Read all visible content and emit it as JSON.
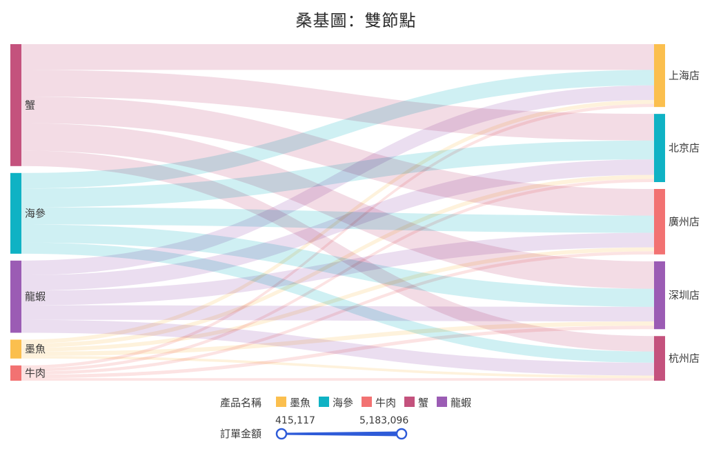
{
  "colors": {
    "墨魚": "#fbbf4e",
    "海參": "#0fb2c4",
    "牛肉": "#f27272",
    "蟹": "#c4527d",
    "龍蝦": "#9b5cb4",
    "slider": "#2e5bd8"
  },
  "chart_data": {
    "type": "sankey",
    "title": "桑基圖：雙節點",
    "sources": [
      "蟹",
      "海參",
      "龍蝦",
      "墨魚",
      "牛肉"
    ],
    "targets": [
      "上海店",
      "北京店",
      "廣州店",
      "深圳店",
      "杭州店"
    ],
    "links": [
      {
        "source": "蟹",
        "target": "上海店",
        "value": 1500000
      },
      {
        "source": "蟹",
        "target": "北京店",
        "value": 1550000
      },
      {
        "source": "蟹",
        "target": "廣州店",
        "value": 1550000
      },
      {
        "source": "蟹",
        "target": "深圳店",
        "value": 1600000
      },
      {
        "source": "蟹",
        "target": "杭州店",
        "value": 900000
      },
      {
        "source": "海參",
        "target": "上海店",
        "value": 900000
      },
      {
        "source": "海參",
        "target": "北京店",
        "value": 1100000
      },
      {
        "source": "海參",
        "target": "廣州店",
        "value": 1000000
      },
      {
        "source": "海參",
        "target": "深圳店",
        "value": 1050000
      },
      {
        "source": "海參",
        "target": "杭州店",
        "value": 650000
      },
      {
        "source": "龍蝦",
        "target": "上海店",
        "value": 850000
      },
      {
        "source": "龍蝦",
        "target": "北京店",
        "value": 900000
      },
      {
        "source": "龍蝦",
        "target": "廣州店",
        "value": 850000
      },
      {
        "source": "龍蝦",
        "target": "深圳店",
        "value": 850000
      },
      {
        "source": "龍蝦",
        "target": "杭州店",
        "value": 750000
      },
      {
        "source": "墨魚",
        "target": "上海店",
        "value": 230000
      },
      {
        "source": "墨魚",
        "target": "北京店",
        "value": 240000
      },
      {
        "source": "墨魚",
        "target": "廣州店",
        "value": 230000
      },
      {
        "source": "墨魚",
        "target": "深圳店",
        "value": 250000
      },
      {
        "source": "墨魚",
        "target": "杭州店",
        "value": 150000
      },
      {
        "source": "牛肉",
        "target": "上海店",
        "value": 180000
      },
      {
        "source": "牛肉",
        "target": "北京店",
        "value": 180000
      },
      {
        "source": "牛肉",
        "target": "廣州店",
        "value": 180000
      },
      {
        "source": "牛肉",
        "target": "深圳店",
        "value": 200000
      },
      {
        "source": "牛肉",
        "target": "杭州店",
        "value": 150000
      }
    ],
    "legend": {
      "title": "產品名稱",
      "items": [
        "墨魚",
        "海參",
        "牛肉",
        "蟹",
        "龍蝦"
      ],
      "position": "bottom-center"
    },
    "range_filter": {
      "label": "訂單金額",
      "min_label": "415,117",
      "max_label": "5,183,096",
      "min": 415117,
      "max": 5183096
    }
  }
}
